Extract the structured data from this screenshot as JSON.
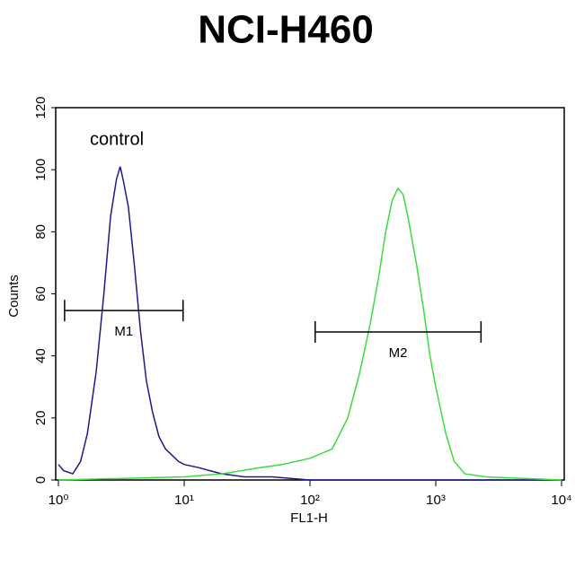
{
  "chart_data": {
    "type": "histogram-overlay",
    "title": "NCI-H460",
    "x_label": "FL1-H",
    "y_label": "Counts",
    "log_x": true,
    "xlim": [
      1,
      10000
    ],
    "ylim": [
      0,
      120
    ],
    "xticks": [
      {
        "value": 1,
        "label": "10⁰"
      },
      {
        "value": 10,
        "label": "10¹"
      },
      {
        "value": 100,
        "label": "10²"
      },
      {
        "value": 1000,
        "label": "10³"
      },
      {
        "value": 10000,
        "label": "10⁴"
      }
    ],
    "yticks": [
      0,
      20,
      40,
      60,
      80,
      100,
      120
    ],
    "series": [
      {
        "name": "control",
        "color": "#1c1c8a",
        "x": [
          1.0,
          1.1,
          1.3,
          1.5,
          1.7,
          2.0,
          2.3,
          2.6,
          2.9,
          3.1,
          3.3,
          3.6,
          4.0,
          4.5,
          5.0,
          5.6,
          6.3,
          7.1,
          8.0,
          9.0,
          10,
          13,
          16,
          20,
          30,
          50,
          100,
          300,
          1000,
          10000
        ],
        "values": [
          5,
          3,
          2,
          6,
          15,
          35,
          60,
          85,
          97,
          101,
          96,
          88,
          70,
          48,
          32,
          22,
          14,
          10,
          8,
          6,
          5,
          4,
          3,
          2,
          1,
          1,
          0,
          0,
          0,
          0
        ]
      },
      {
        "color": "#3ddc3d",
        "x": [
          1,
          10,
          20,
          40,
          60,
          100,
          150,
          200,
          250,
          300,
          350,
          400,
          450,
          500,
          550,
          600,
          700,
          800,
          900,
          1000,
          1200,
          1400,
          1700,
          2500,
          10000
        ],
        "values": [
          0,
          1,
          2,
          4,
          5,
          7,
          10,
          20,
          35,
          50,
          65,
          80,
          90,
          94,
          92,
          85,
          70,
          55,
          40,
          30,
          15,
          6,
          2,
          1,
          0
        ]
      }
    ],
    "gates": [
      {
        "name": "M1",
        "x": [
          1.12,
          9.8
        ],
        "y": 54.6
      },
      {
        "name": "M2",
        "x": [
          110,
          2290
        ],
        "y": 47.7
      }
    ]
  }
}
